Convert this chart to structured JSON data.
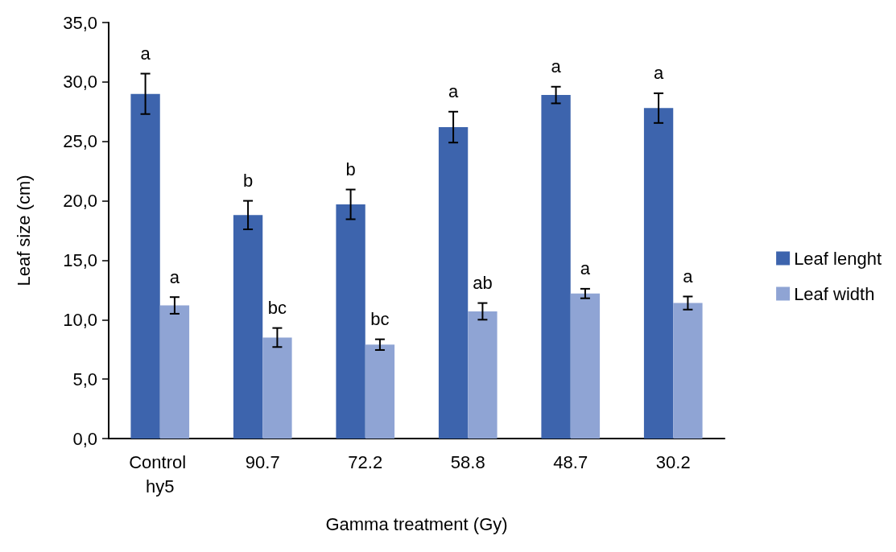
{
  "chart_data": {
    "type": "bar",
    "xlabel": "Gamma treatment (Gy)",
    "ylabel": "Leaf size (cm)",
    "categories": [
      "Control hy5",
      "90.7",
      "72.2",
      "58.8",
      "48.7",
      "30.2"
    ],
    "series": [
      {
        "name": "Leaf lenght",
        "color": "#3d64ad",
        "values": [
          29.0,
          18.8,
          19.7,
          26.2,
          28.9,
          27.8
        ],
        "errors": [
          1.7,
          1.2,
          1.25,
          1.3,
          0.7,
          1.25
        ],
        "value_labels": [
          "a",
          "b",
          "b",
          "a",
          "a",
          "a"
        ]
      },
      {
        "name": "Leaf width",
        "color": "#8fa4d4",
        "values": [
          11.2,
          8.5,
          7.9,
          10.7,
          12.2,
          11.4
        ],
        "errors": [
          0.7,
          0.8,
          0.45,
          0.7,
          0.4,
          0.55
        ],
        "value_labels": [
          "a",
          "bc",
          "bc",
          "ab",
          "a",
          "a"
        ]
      }
    ],
    "ylim": [
      0,
      35
    ],
    "yticks": [
      {
        "value": 0,
        "label": "0,0"
      },
      {
        "value": 5,
        "label": "5,0"
      },
      {
        "value": 10,
        "label": "10,0"
      },
      {
        "value": 15,
        "label": "15,0"
      },
      {
        "value": 20,
        "label": "20,0"
      },
      {
        "value": 25,
        "label": "25,0"
      },
      {
        "value": 30,
        "label": "30,0"
      },
      {
        "value": 35,
        "label": "35,0"
      }
    ],
    "grid": false,
    "legend": "right"
  }
}
